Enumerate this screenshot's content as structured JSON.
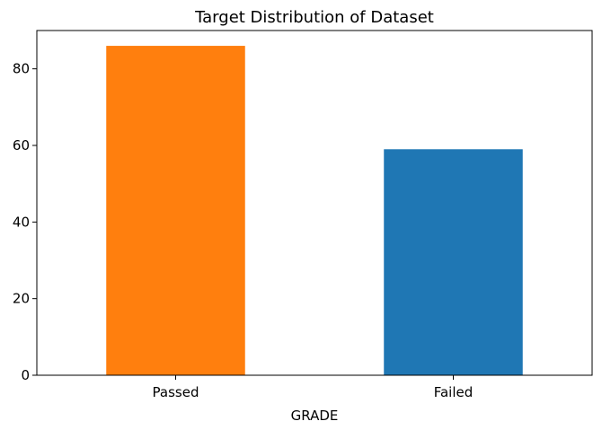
{
  "chart_data": {
    "type": "bar",
    "title": "Target Distribution of Dataset",
    "xlabel": "GRADE",
    "ylabel": "",
    "categories": [
      "Passed",
      "Failed"
    ],
    "values": [
      86,
      59
    ],
    "colors": [
      "#ff7f0e",
      "#1f77b4"
    ],
    "ylim": [
      0,
      90
    ],
    "yticks": [
      0,
      20,
      40,
      60,
      80
    ],
    "grid": false,
    "legend": "none"
  }
}
